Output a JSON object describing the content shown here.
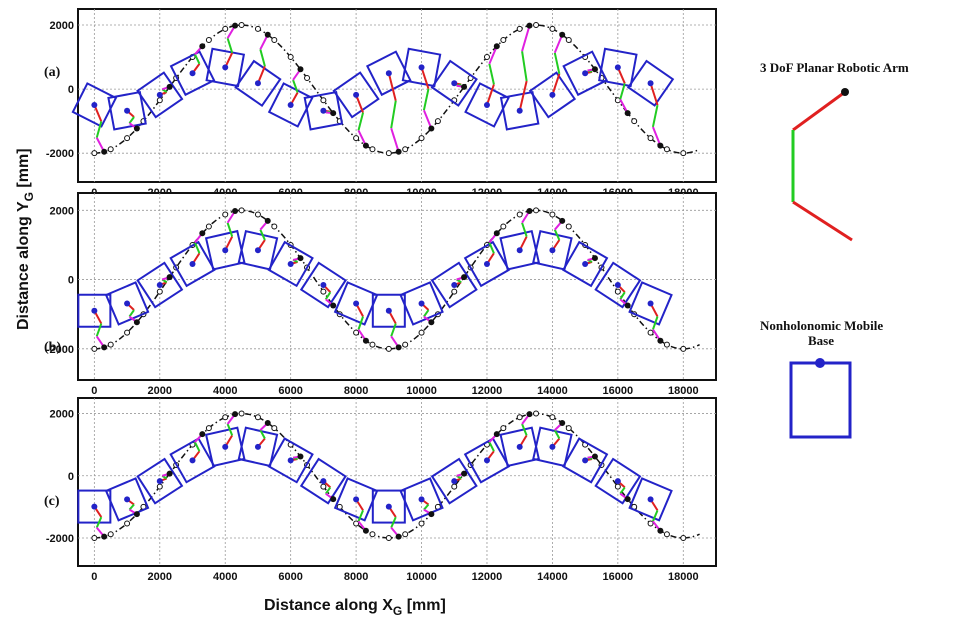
{
  "chart_data": {
    "type": "line",
    "x_axis_label": "Distance along X",
    "x_axis_sub": "G",
    "x_axis_unit": "[mm]",
    "y_axis_label": "Distance along Y",
    "y_axis_sub": "G",
    "y_axis_unit": "[mm]",
    "xlim": [
      -500,
      19000
    ],
    "ylim": [
      -2900,
      2500
    ],
    "x_ticks": [
      0,
      2000,
      4000,
      6000,
      8000,
      10000,
      12000,
      14000,
      16000,
      18000
    ],
    "y_ticks": [
      2000,
      0,
      -2000
    ],
    "grid": true,
    "colors": {
      "base": "#2323c8",
      "link_red": "#e02020",
      "link_green": "#22cc22",
      "link_magenta": "#e020e0",
      "path": "#111111"
    },
    "panels": [
      {
        "label": "(a)",
        "path_amplitude": 2000,
        "path_period": 9000,
        "path_shift": 0,
        "trajectory_amplitude": 700,
        "trajectory_period": 6000
      },
      {
        "label": "(b)",
        "path_amplitude": 2000,
        "path_period": 9000,
        "path_shift": 0,
        "trajectory_amplitude": 1000,
        "trajectory_period": 9000
      },
      {
        "label": "(c)",
        "path_amplitude": 2000,
        "path_period": 9000,
        "path_shift": 0,
        "trajectory_amplitude": 1100,
        "trajectory_period": 9000
      }
    ],
    "legend": {
      "arm_title": "3 DoF Planar Robotic Arm",
      "base_title_line1": "Nonholonomic Mobile",
      "base_title_line2": "Base"
    }
  }
}
